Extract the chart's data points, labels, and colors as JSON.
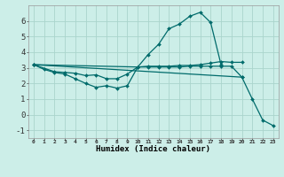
{
  "xlabel": "Humidex (Indice chaleur)",
  "background_color": "#cceee8",
  "grid_color": "#aad4cc",
  "line_color": "#006b6b",
  "xlim": [
    -0.5,
    23.5
  ],
  "ylim": [
    -1.5,
    7.0
  ],
  "xtick_labels": [
    "0",
    "1",
    "2",
    "3",
    "4",
    "5",
    "6",
    "7",
    "8",
    "9",
    "10",
    "11",
    "12",
    "13",
    "14",
    "15",
    "16",
    "17",
    "18",
    "19",
    "20",
    "21",
    "22",
    "23"
  ],
  "ytick_values": [
    -1,
    0,
    1,
    2,
    3,
    4,
    5,
    6
  ],
  "lines": [
    {
      "x": [
        0,
        1,
        2,
        3,
        4,
        5,
        6,
        7,
        8,
        9,
        10,
        11,
        12,
        13,
        14,
        15,
        16,
        17,
        18
      ],
      "y": [
        3.2,
        2.9,
        2.7,
        2.6,
        2.3,
        2.0,
        1.75,
        1.85,
        1.7,
        1.85,
        3.05,
        3.85,
        4.5,
        5.5,
        5.8,
        6.3,
        6.55,
        5.9,
        3.2
      ]
    },
    {
      "x": [
        0,
        2,
        3,
        4,
        5,
        6,
        7,
        8,
        9,
        10,
        11,
        12,
        13,
        14,
        15,
        16,
        17,
        18,
        19,
        20
      ],
      "y": [
        3.2,
        2.75,
        2.7,
        2.65,
        2.5,
        2.55,
        2.3,
        2.3,
        2.6,
        3.05,
        3.1,
        3.1,
        3.1,
        3.15,
        3.15,
        3.2,
        3.3,
        3.4,
        3.35,
        3.35
      ]
    },
    {
      "x": [
        0,
        20,
        21,
        22,
        23
      ],
      "y": [
        3.2,
        2.4,
        1.0,
        -0.35,
        -0.7
      ]
    },
    {
      "x": [
        0,
        10,
        11,
        12,
        13,
        14,
        15,
        16,
        17,
        18,
        19,
        20
      ],
      "y": [
        3.2,
        3.05,
        3.05,
        3.05,
        3.05,
        3.05,
        3.1,
        3.1,
        3.1,
        3.1,
        3.1,
        2.4
      ]
    }
  ]
}
